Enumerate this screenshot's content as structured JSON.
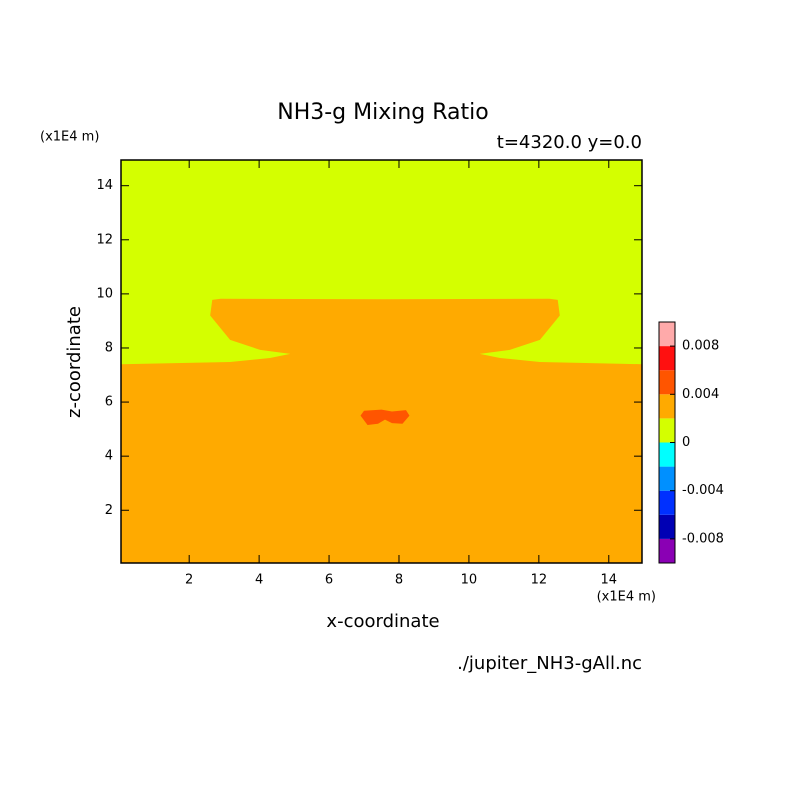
{
  "chart_data": {
    "type": "contour",
    "title": "NH3-g Mixing Ratio",
    "subtitle": "t=4320.0 y=0.0",
    "xlabel": "x-coordinate",
    "ylabel": "z-coordinate",
    "x_unit": "(x1E4 m)",
    "y_unit": "(x1E4 m)",
    "source": "./jupiter_NH3-gAll.nc",
    "xlim": [
      0.05,
      14.95
    ],
    "ylim": [
      0.05,
      14.95
    ],
    "xticks": [
      2,
      4,
      6,
      8,
      10,
      12,
      14
    ],
    "yticks": [
      2,
      4,
      6,
      8,
      10,
      12,
      14
    ],
    "levels": [
      -0.01,
      -0.008,
      -0.006,
      -0.004,
      -0.002,
      0,
      0.002,
      0.004,
      0.006,
      0.008,
      0.01
    ],
    "colors": [
      "#8a00b4",
      "#0000b4",
      "#0030ff",
      "#0090ff",
      "#00ffff",
      "#d4ff00",
      "#ffaa00",
      "#ff5500",
      "#ff1010",
      "#ffaaaa"
    ],
    "colorbar_ticks": [
      -0.008,
      -0.004,
      0,
      0.004,
      0.008
    ],
    "regions": [
      {
        "band": [
          0,
          0.002
        ],
        "x": [
          0.05,
          14.95,
          14.95,
          0.05
        ],
        "y": [
          0.05,
          0.05,
          14.95,
          14.95
        ]
      },
      {
        "band": [
          0.002,
          0.004
        ],
        "x": [
          0.05,
          14.95,
          14.95,
          12.03,
          10.89,
          10.31,
          11.17,
          12.03,
          12.6,
          12.54,
          12.3,
          7.6,
          2.9,
          2.66,
          2.6,
          3.17,
          4.03,
          4.89,
          4.31,
          3.17,
          0.05
        ],
        "y": [
          0.05,
          0.05,
          7.4,
          7.48,
          7.63,
          7.78,
          7.93,
          8.3,
          9.2,
          9.78,
          9.82,
          9.8,
          9.82,
          9.78,
          9.2,
          8.3,
          7.93,
          7.78,
          7.63,
          7.48,
          7.4
        ]
      },
      {
        "band": [
          0.004,
          0.006
        ],
        "x": [
          6.9,
          7.0,
          7.5,
          7.8,
          8.2,
          8.3,
          8.1,
          7.8,
          7.6,
          7.4,
          7.1
        ],
        "y": [
          5.5,
          5.68,
          5.72,
          5.65,
          5.7,
          5.5,
          5.2,
          5.22,
          5.35,
          5.2,
          5.15
        ]
      }
    ]
  }
}
